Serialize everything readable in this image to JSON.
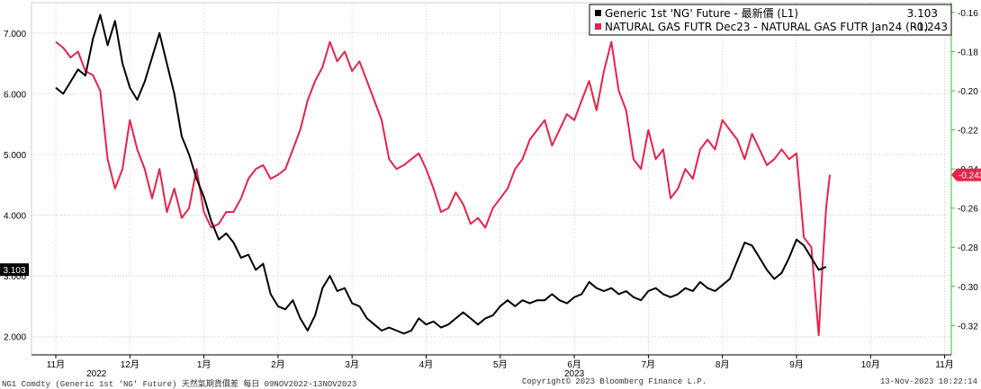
{
  "chart_data": {
    "type": "line",
    "x_ticks": [
      "11月",
      "12月",
      "1月",
      "2月",
      "3月",
      "4月",
      "5月",
      "6月",
      "7月",
      "8月",
      "9月",
      "10月",
      "11月"
    ],
    "year_labels": [
      "2022",
      "2023"
    ],
    "left_axis": {
      "ticks": [
        "2.000",
        "3.000",
        "4.000",
        "5.000",
        "6.000",
        "7.000"
      ],
      "ylim": [
        1.7,
        7.5
      ]
    },
    "right_axis": {
      "ticks": [
        "-0.16",
        "-0.18",
        "-0.20",
        "-0.22",
        "-0.24",
        "-0.26",
        "-0.28",
        "-0.30",
        "-0.32"
      ],
      "ylim": [
        -0.335,
        -0.155
      ]
    },
    "grid": true,
    "series": [
      {
        "name": "Generic 1st 'NG' Future - 最新價 (L1)",
        "last_value": "3.103",
        "color": "#000000",
        "axis": "left",
        "points": [
          [
            0,
            6.1
          ],
          [
            0.1,
            6.0
          ],
          [
            0.2,
            6.2
          ],
          [
            0.3,
            6.4
          ],
          [
            0.4,
            6.3
          ],
          [
            0.5,
            6.9
          ],
          [
            0.6,
            7.3
          ],
          [
            0.7,
            6.8
          ],
          [
            0.8,
            7.2
          ],
          [
            0.9,
            6.5
          ],
          [
            1.0,
            6.1
          ],
          [
            1.1,
            5.9
          ],
          [
            1.2,
            6.2
          ],
          [
            1.3,
            6.6
          ],
          [
            1.4,
            7.0
          ],
          [
            1.5,
            6.5
          ],
          [
            1.6,
            6.0
          ],
          [
            1.7,
            5.3
          ],
          [
            1.8,
            5.0
          ],
          [
            1.9,
            4.6
          ],
          [
            2.0,
            4.3
          ],
          [
            2.1,
            3.9
          ],
          [
            2.2,
            3.6
          ],
          [
            2.3,
            3.7
          ],
          [
            2.4,
            3.55
          ],
          [
            2.5,
            3.3
          ],
          [
            2.6,
            3.35
          ],
          [
            2.7,
            3.1
          ],
          [
            2.8,
            3.2
          ],
          [
            2.9,
            2.7
          ],
          [
            3.0,
            2.5
          ],
          [
            3.1,
            2.45
          ],
          [
            3.2,
            2.6
          ],
          [
            3.3,
            2.3
          ],
          [
            3.4,
            2.1
          ],
          [
            3.5,
            2.35
          ],
          [
            3.6,
            2.8
          ],
          [
            3.7,
            3.0
          ],
          [
            3.8,
            2.75
          ],
          [
            3.9,
            2.8
          ],
          [
            4.0,
            2.55
          ],
          [
            4.1,
            2.5
          ],
          [
            4.2,
            2.3
          ],
          [
            4.3,
            2.2
          ],
          [
            4.4,
            2.1
          ],
          [
            4.5,
            2.15
          ],
          [
            4.6,
            2.1
          ],
          [
            4.7,
            2.05
          ],
          [
            4.8,
            2.1
          ],
          [
            4.9,
            2.3
          ],
          [
            5.0,
            2.2
          ],
          [
            5.1,
            2.25
          ],
          [
            5.2,
            2.15
          ],
          [
            5.3,
            2.2
          ],
          [
            5.4,
            2.3
          ],
          [
            5.5,
            2.4
          ],
          [
            5.6,
            2.3
          ],
          [
            5.7,
            2.2
          ],
          [
            5.8,
            2.3
          ],
          [
            5.9,
            2.35
          ],
          [
            6.0,
            2.5
          ],
          [
            6.1,
            2.6
          ],
          [
            6.2,
            2.5
          ],
          [
            6.3,
            2.6
          ],
          [
            6.4,
            2.55
          ],
          [
            6.5,
            2.6
          ],
          [
            6.6,
            2.6
          ],
          [
            6.7,
            2.7
          ],
          [
            6.8,
            2.6
          ],
          [
            6.9,
            2.55
          ],
          [
            7.0,
            2.65
          ],
          [
            7.1,
            2.7
          ],
          [
            7.2,
            2.9
          ],
          [
            7.3,
            2.8
          ],
          [
            7.4,
            2.75
          ],
          [
            7.5,
            2.8
          ],
          [
            7.6,
            2.7
          ],
          [
            7.7,
            2.75
          ],
          [
            7.8,
            2.65
          ],
          [
            7.9,
            2.6
          ],
          [
            8.0,
            2.75
          ],
          [
            8.1,
            2.8
          ],
          [
            8.2,
            2.7
          ],
          [
            8.3,
            2.65
          ],
          [
            8.4,
            2.7
          ],
          [
            8.5,
            2.8
          ],
          [
            8.6,
            2.75
          ],
          [
            8.7,
            2.9
          ],
          [
            8.8,
            2.8
          ],
          [
            8.9,
            2.75
          ],
          [
            9.0,
            2.85
          ],
          [
            9.1,
            2.95
          ],
          [
            9.2,
            3.25
          ],
          [
            9.3,
            3.55
          ],
          [
            9.4,
            3.5
          ],
          [
            9.5,
            3.3
          ],
          [
            9.6,
            3.1
          ],
          [
            9.7,
            2.95
          ],
          [
            9.8,
            3.05
          ],
          [
            9.9,
            3.3
          ],
          [
            10.0,
            3.6
          ],
          [
            10.1,
            3.5
          ],
          [
            10.2,
            3.3
          ],
          [
            10.3,
            3.1
          ],
          [
            10.4,
            3.15
          ]
        ]
      },
      {
        "name": "NATURAL GAS FUTR Dec23 - NATURAL GAS FUTR Jan24 (R1)",
        "last_value": "-0.243",
        "color": "#E8224A",
        "axis": "right",
        "points": [
          [
            0,
            -0.175
          ],
          [
            0.1,
            -0.178
          ],
          [
            0.2,
            -0.183
          ],
          [
            0.3,
            -0.18
          ],
          [
            0.4,
            -0.19
          ],
          [
            0.5,
            -0.192
          ],
          [
            0.6,
            -0.2
          ],
          [
            0.7,
            -0.235
          ],
          [
            0.8,
            -0.25
          ],
          [
            0.9,
            -0.24
          ],
          [
            1.0,
            -0.215
          ],
          [
            1.1,
            -0.23
          ],
          [
            1.2,
            -0.24
          ],
          [
            1.3,
            -0.255
          ],
          [
            1.4,
            -0.24
          ],
          [
            1.5,
            -0.262
          ],
          [
            1.6,
            -0.25
          ],
          [
            1.7,
            -0.265
          ],
          [
            1.8,
            -0.26
          ],
          [
            1.9,
            -0.24
          ],
          [
            2.0,
            -0.262
          ],
          [
            2.1,
            -0.27
          ],
          [
            2.2,
            -0.268
          ],
          [
            2.3,
            -0.262
          ],
          [
            2.4,
            -0.262
          ],
          [
            2.5,
            -0.255
          ],
          [
            2.6,
            -0.245
          ],
          [
            2.7,
            -0.24
          ],
          [
            2.8,
            -0.238
          ],
          [
            2.9,
            -0.245
          ],
          [
            3.0,
            -0.243
          ],
          [
            3.1,
            -0.24
          ],
          [
            3.2,
            -0.23
          ],
          [
            3.3,
            -0.22
          ],
          [
            3.4,
            -0.205
          ],
          [
            3.5,
            -0.195
          ],
          [
            3.6,
            -0.188
          ],
          [
            3.7,
            -0.175
          ],
          [
            3.8,
            -0.185
          ],
          [
            3.9,
            -0.18
          ],
          [
            4.0,
            -0.19
          ],
          [
            4.1,
            -0.185
          ],
          [
            4.2,
            -0.195
          ],
          [
            4.3,
            -0.205
          ],
          [
            4.4,
            -0.215
          ],
          [
            4.5,
            -0.235
          ],
          [
            4.6,
            -0.24
          ],
          [
            4.7,
            -0.238
          ],
          [
            4.8,
            -0.235
          ],
          [
            4.9,
            -0.232
          ],
          [
            5.0,
            -0.24
          ],
          [
            5.1,
            -0.25
          ],
          [
            5.2,
            -0.262
          ],
          [
            5.3,
            -0.26
          ],
          [
            5.4,
            -0.252
          ],
          [
            5.5,
            -0.258
          ],
          [
            5.6,
            -0.268
          ],
          [
            5.7,
            -0.265
          ],
          [
            5.8,
            -0.27
          ],
          [
            5.9,
            -0.26
          ],
          [
            6.0,
            -0.255
          ],
          [
            6.1,
            -0.25
          ],
          [
            6.2,
            -0.24
          ],
          [
            6.3,
            -0.235
          ],
          [
            6.4,
            -0.225
          ],
          [
            6.5,
            -0.22
          ],
          [
            6.6,
            -0.215
          ],
          [
            6.7,
            -0.228
          ],
          [
            6.8,
            -0.22
          ],
          [
            6.9,
            -0.212
          ],
          [
            7.0,
            -0.215
          ],
          [
            7.1,
            -0.205
          ],
          [
            7.2,
            -0.195
          ],
          [
            7.3,
            -0.21
          ],
          [
            7.4,
            -0.19
          ],
          [
            7.5,
            -0.175
          ],
          [
            7.6,
            -0.2
          ],
          [
            7.7,
            -0.21
          ],
          [
            7.8,
            -0.235
          ],
          [
            7.9,
            -0.24
          ],
          [
            8.0,
            -0.22
          ],
          [
            8.1,
            -0.235
          ],
          [
            8.2,
            -0.23
          ],
          [
            8.3,
            -0.255
          ],
          [
            8.4,
            -0.25
          ],
          [
            8.5,
            -0.24
          ],
          [
            8.6,
            -0.245
          ],
          [
            8.7,
            -0.23
          ],
          [
            8.8,
            -0.225
          ],
          [
            8.9,
            -0.23
          ],
          [
            9.0,
            -0.215
          ],
          [
            9.1,
            -0.22
          ],
          [
            9.2,
            -0.225
          ],
          [
            9.3,
            -0.235
          ],
          [
            9.4,
            -0.222
          ],
          [
            9.5,
            -0.23
          ],
          [
            9.6,
            -0.238
          ],
          [
            9.7,
            -0.235
          ],
          [
            9.8,
            -0.23
          ],
          [
            9.9,
            -0.235
          ],
          [
            10.0,
            -0.232
          ],
          [
            10.1,
            -0.275
          ],
          [
            10.2,
            -0.28
          ],
          [
            10.3,
            -0.325
          ],
          [
            10.35,
            -0.29
          ],
          [
            10.4,
            -0.26
          ],
          [
            10.45,
            -0.243
          ]
        ]
      }
    ]
  },
  "footer": {
    "left": "NG1 Comdty (Generic 1st 'NG' Future) 天然氣期貨價差   每日 09NOV2022-13NOV2023",
    "center": "Copyright© 2023 Bloomberg Finance L.P.",
    "right": "13-Nov-2023  10:22:14"
  },
  "colors": {
    "left_axis": "#000000",
    "right_axis": "#22CC22",
    "series1": "#000000",
    "series2": "#E8224A"
  }
}
